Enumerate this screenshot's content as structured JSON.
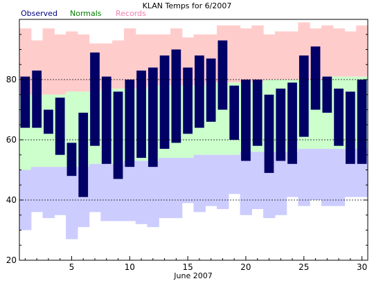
{
  "chart_data": {
    "type": "bar",
    "title": "KLAN Temps for 6/2007",
    "xlabel": "June 2007",
    "ylabel": "",
    "ylim": [
      20,
      100
    ],
    "xlim": [
      0.5,
      30.5
    ],
    "yticks": [
      20,
      40,
      60,
      80
    ],
    "xticks": [
      5,
      10,
      15,
      20,
      25,
      30
    ],
    "gridlines_y": [
      40,
      60,
      80
    ],
    "legend": [
      "Observed",
      "Normals",
      "Records"
    ],
    "legend_position": "top-left",
    "colors": {
      "observed": "#000066",
      "observed_legend": "#000080",
      "normals_legend": "#008000",
      "records_legend": "#f080b0",
      "normal_band": "#ccffcc",
      "record_band": "#ffcccc",
      "cold_band": "#ccccff"
    },
    "days": [
      1,
      2,
      3,
      4,
      5,
      6,
      7,
      8,
      9,
      10,
      11,
      12,
      13,
      14,
      15,
      16,
      17,
      18,
      19,
      20,
      21,
      22,
      23,
      24,
      25,
      26,
      27,
      28,
      29,
      30
    ],
    "observed_high": [
      81,
      83,
      70,
      74,
      59,
      69,
      89,
      81,
      76,
      80,
      83,
      84,
      88,
      90,
      84,
      88,
      87,
      93,
      78,
      80,
      80,
      75,
      77,
      79,
      88,
      91,
      81,
      77,
      76,
      80
    ],
    "observed_low": [
      64,
      64,
      62,
      55,
      48,
      41,
      58,
      52,
      47,
      51,
      54,
      51,
      57,
      59,
      62,
      64,
      66,
      70,
      60,
      53,
      58,
      49,
      53,
      52,
      61,
      70,
      69,
      58,
      52,
      52
    ],
    "normal_high": [
      75,
      75,
      75,
      75,
      76,
      76,
      76,
      77,
      77,
      77,
      77,
      78,
      78,
      78,
      78,
      78,
      79,
      79,
      79,
      79,
      79,
      80,
      80,
      80,
      80,
      80,
      81,
      81,
      81,
      81
    ],
    "normal_low": [
      50,
      51,
      51,
      51,
      51,
      51,
      52,
      52,
      52,
      53,
      53,
      53,
      54,
      54,
      54,
      55,
      55,
      55,
      55,
      56,
      56,
      56,
      56,
      56,
      57,
      57,
      57,
      57,
      57,
      57
    ],
    "record_high": [
      97,
      93,
      97,
      95,
      96,
      95,
      92,
      92,
      93,
      97,
      95,
      95,
      95,
      97,
      94,
      95,
      95,
      98,
      98,
      97,
      98,
      95,
      96,
      96,
      99,
      97,
      98,
      97,
      96,
      98
    ],
    "record_low": [
      30,
      36,
      34,
      35,
      27,
      31,
      36,
      33,
      33,
      33,
      32,
      31,
      34,
      34,
      39,
      36,
      38,
      37,
      42,
      35,
      37,
      34,
      35,
      41,
      38,
      40,
      38,
      38,
      41,
      41
    ]
  }
}
